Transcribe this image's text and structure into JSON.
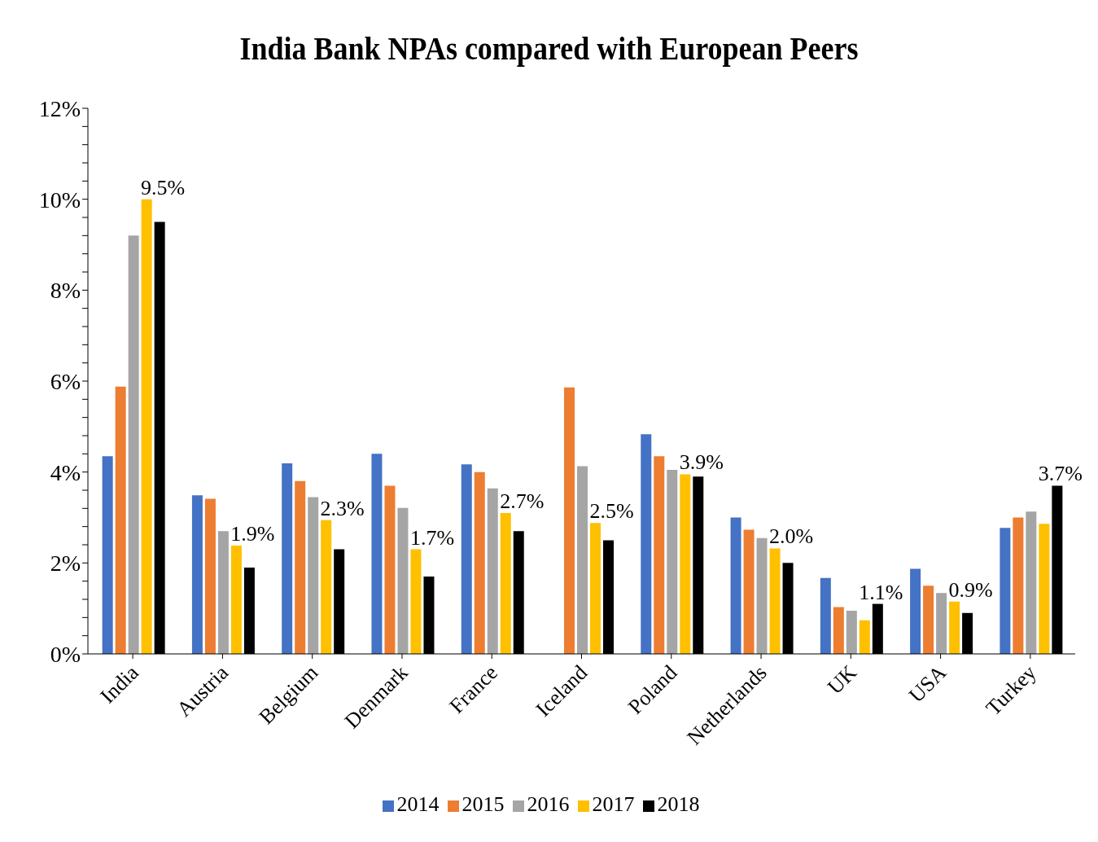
{
  "chart_data": {
    "type": "bar",
    "title": "India Bank NPAs compared with European Peers",
    "categories": [
      "India",
      "Austria",
      "Belgium",
      "Denmark",
      "France",
      "Iceland",
      "Poland",
      "Netherlands",
      "UK",
      "USA",
      "Turkey"
    ],
    "series": [
      {
        "name": "2014",
        "color": "#4472c4",
        "values": [
          4.35,
          3.49,
          4.19,
          4.4,
          4.17,
          null,
          4.83,
          3.0,
          1.67,
          1.87,
          2.77
        ]
      },
      {
        "name": "2015",
        "color": "#ed7d31",
        "values": [
          5.88,
          3.41,
          3.8,
          3.7,
          4.0,
          5.86,
          4.35,
          2.73,
          1.03,
          1.5,
          3.0
        ]
      },
      {
        "name": "2016",
        "color": "#a5a5a5",
        "values": [
          9.2,
          2.7,
          3.45,
          3.21,
          3.64,
          4.13,
          4.05,
          2.55,
          0.95,
          1.34,
          3.13
        ]
      },
      {
        "name": "2017",
        "color": "#ffc000",
        "values": [
          10.0,
          2.38,
          2.94,
          2.3,
          3.1,
          2.88,
          3.95,
          2.32,
          0.74,
          1.15,
          2.86
        ]
      },
      {
        "name": "2018",
        "color": "#000000",
        "values": [
          9.5,
          1.9,
          2.3,
          1.7,
          2.7,
          2.5,
          3.9,
          2.0,
          1.1,
          0.9,
          3.7
        ],
        "value_labels": [
          "9.5%",
          "1.9%",
          "2.3%",
          "1.7%",
          "2.7%",
          "2.5%",
          "3.9%",
          "2.0%",
          "1.1%",
          "0.9%",
          "3.7%"
        ]
      }
    ],
    "ylim": [
      0,
      12
    ],
    "yticks": [
      {
        "value": 0,
        "label": "0%"
      },
      {
        "value": 0.4,
        "label": null
      },
      {
        "value": 0.8,
        "label": null
      },
      {
        "value": 1.2,
        "label": null
      },
      {
        "value": 1.6,
        "label": null
      },
      {
        "value": 2,
        "label": "2%"
      },
      {
        "value": 2.4,
        "label": null
      },
      {
        "value": 2.8,
        "label": null
      },
      {
        "value": 3.2,
        "label": null
      },
      {
        "value": 3.6,
        "label": null
      },
      {
        "value": 4,
        "label": "4%"
      },
      {
        "value": 4.4,
        "label": null
      },
      {
        "value": 4.8,
        "label": null
      },
      {
        "value": 5.2,
        "label": null
      },
      {
        "value": 5.6,
        "label": null
      },
      {
        "value": 6,
        "label": "6%"
      },
      {
        "value": 6.4,
        "label": null
      },
      {
        "value": 6.8,
        "label": null
      },
      {
        "value": 7.2,
        "label": null
      },
      {
        "value": 7.6,
        "label": null
      },
      {
        "value": 8,
        "label": "8%"
      },
      {
        "value": 8.4,
        "label": null
      },
      {
        "value": 8.8,
        "label": null
      },
      {
        "value": 9.2,
        "label": null
      },
      {
        "value": 9.6,
        "label": null
      },
      {
        "value": 10,
        "label": "10%"
      },
      {
        "value": 10.4,
        "label": null
      },
      {
        "value": 10.8,
        "label": null
      },
      {
        "value": 11.2,
        "label": null
      },
      {
        "value": 11.6,
        "label": null
      },
      {
        "value": 12,
        "label": "12%"
      }
    ],
    "grid": false,
    "legend": "bottom"
  }
}
